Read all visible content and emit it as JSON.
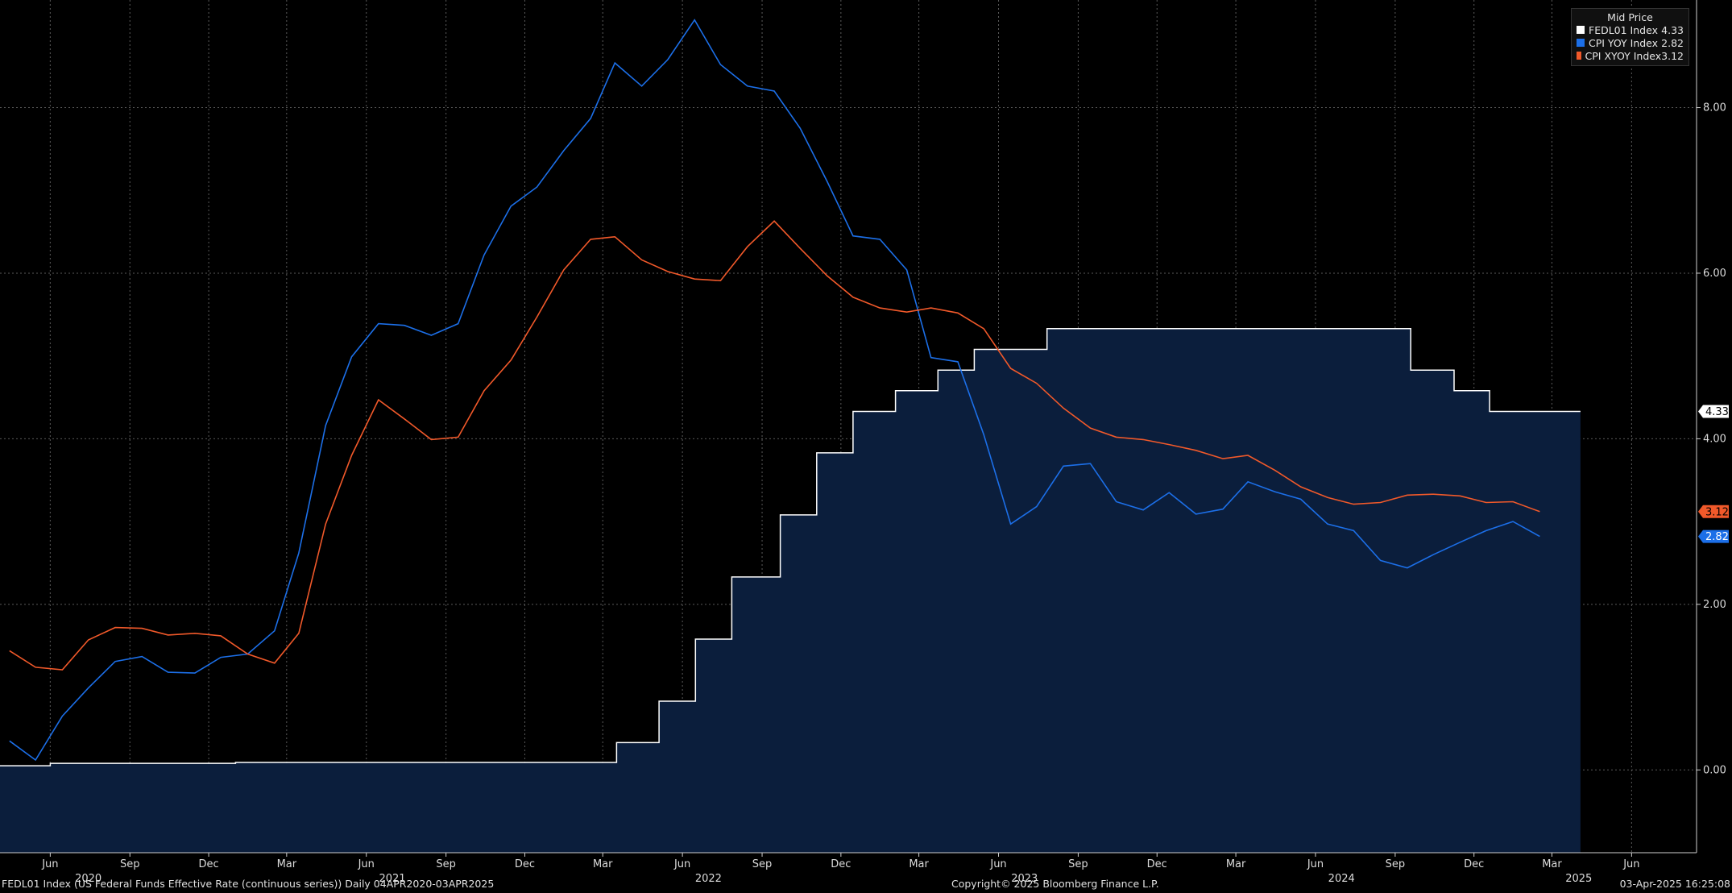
{
  "chart_data": {
    "type": "line",
    "legend": {
      "title": "Mid Price",
      "position": "top-right",
      "entries": [
        {
          "name": "FEDL01 Index",
          "value": "4.33",
          "color": "#ffffff"
        },
        {
          "name": "CPI YOY Index",
          "value": "2.82",
          "color": "#1c6fe8"
        },
        {
          "name": "CPI XYOY Index",
          "value": "3.12",
          "color": "#f1592a"
        }
      ]
    },
    "ylim": [
      -1.0,
      9.3
    ],
    "yticks": [
      "0.00",
      "2.00",
      "4.00",
      "6.00",
      "8.00"
    ],
    "xlim": [
      "2020-04-04",
      "2025-08-15"
    ],
    "month_ticks": [
      {
        "label": "Jun",
        "date": "2020-06-01"
      },
      {
        "label": "Sep",
        "date": "2020-09-01"
      },
      {
        "label": "Dec",
        "date": "2020-12-01"
      },
      {
        "label": "Mar",
        "date": "2021-03-01"
      },
      {
        "label": "Jun",
        "date": "2021-06-01"
      },
      {
        "label": "Sep",
        "date": "2021-09-01"
      },
      {
        "label": "Dec",
        "date": "2021-12-01"
      },
      {
        "label": "Mar",
        "date": "2022-03-01"
      },
      {
        "label": "Jun",
        "date": "2022-06-01"
      },
      {
        "label": "Sep",
        "date": "2022-09-01"
      },
      {
        "label": "Dec",
        "date": "2022-12-01"
      },
      {
        "label": "Mar",
        "date": "2023-03-01"
      },
      {
        "label": "Jun",
        "date": "2023-06-01"
      },
      {
        "label": "Sep",
        "date": "2023-09-01"
      },
      {
        "label": "Dec",
        "date": "2023-12-01"
      },
      {
        "label": "Mar",
        "date": "2024-03-01"
      },
      {
        "label": "Jun",
        "date": "2024-06-01"
      },
      {
        "label": "Sep",
        "date": "2024-09-01"
      },
      {
        "label": "Dec",
        "date": "2024-12-01"
      },
      {
        "label": "Mar",
        "date": "2025-03-01"
      },
      {
        "label": "Jun",
        "date": "2025-06-01"
      }
    ],
    "year_ticks": [
      {
        "label": "2020",
        "date": "2020-07-15"
      },
      {
        "label": "2021",
        "date": "2021-07-01"
      },
      {
        "label": "2022",
        "date": "2022-07-01"
      },
      {
        "label": "2023",
        "date": "2023-07-01"
      },
      {
        "label": "2024",
        "date": "2024-07-01"
      },
      {
        "label": "2025",
        "date": "2025-04-01"
      }
    ],
    "series": [
      {
        "name": "FEDL01 Index",
        "style": "step-area",
        "color": "#ffffff",
        "fill": "#0b1e3c",
        "x": [
          "2020-04-04",
          "2020-06-01",
          "2021-01-01",
          "2022-03-17",
          "2022-05-05",
          "2022-06-16",
          "2022-07-28",
          "2022-09-22",
          "2022-11-03",
          "2022-12-15",
          "2023-02-02",
          "2023-03-23",
          "2023-05-04",
          "2023-07-27",
          "2024-09-19",
          "2024-11-08",
          "2024-12-19",
          "2025-04-03"
        ],
        "values": [
          0.05,
          0.08,
          0.09,
          0.33,
          0.83,
          1.58,
          2.33,
          3.08,
          3.83,
          4.33,
          4.58,
          4.83,
          5.08,
          5.33,
          4.83,
          4.58,
          4.33,
          4.33
        ]
      },
      {
        "name": "CPI YOY Index",
        "style": "line",
        "color": "#1c6fe8",
        "x": [
          "2020-04-15",
          "2020-05-15",
          "2020-06-15",
          "2020-07-15",
          "2020-08-15",
          "2020-09-15",
          "2020-10-15",
          "2020-11-15",
          "2020-12-15",
          "2021-01-15",
          "2021-02-15",
          "2021-03-15",
          "2021-04-15",
          "2021-05-15",
          "2021-06-15",
          "2021-07-15",
          "2021-08-15",
          "2021-09-15",
          "2021-10-15",
          "2021-11-15",
          "2021-12-15",
          "2022-01-15",
          "2022-02-15",
          "2022-03-15",
          "2022-04-15",
          "2022-05-15",
          "2022-06-15",
          "2022-07-15",
          "2022-08-15",
          "2022-09-15",
          "2022-10-15",
          "2022-11-15",
          "2022-12-15",
          "2023-01-15",
          "2023-02-15",
          "2023-03-15",
          "2023-04-15",
          "2023-05-15",
          "2023-06-15",
          "2023-07-15",
          "2023-08-15",
          "2023-09-15",
          "2023-10-15",
          "2023-11-15",
          "2023-12-15",
          "2024-01-15",
          "2024-02-15",
          "2024-03-15",
          "2024-04-15",
          "2024-05-15",
          "2024-06-15",
          "2024-07-15",
          "2024-08-15",
          "2024-09-15",
          "2024-10-15",
          "2024-11-15",
          "2024-12-15",
          "2025-01-15",
          "2025-02-15"
        ],
        "values": [
          0.35,
          0.12,
          0.65,
          0.99,
          1.31,
          1.37,
          1.18,
          1.17,
          1.36,
          1.4,
          1.68,
          2.62,
          4.16,
          4.99,
          5.39,
          5.37,
          5.25,
          5.39,
          6.22,
          6.81,
          7.04,
          7.48,
          7.87,
          8.54,
          8.26,
          8.58,
          9.06,
          8.52,
          8.26,
          8.2,
          7.75,
          7.11,
          6.45,
          6.41,
          6.04,
          4.98,
          4.93,
          4.05,
          2.97,
          3.18,
          3.67,
          3.7,
          3.24,
          3.14,
          3.35,
          3.09,
          3.15,
          3.48,
          3.36,
          3.27,
          2.97,
          2.89,
          2.53,
          2.44,
          2.6,
          2.75,
          2.89,
          3.0,
          2.82
        ]
      },
      {
        "name": "CPI XYOY Index",
        "style": "line",
        "color": "#f1592a",
        "x": [
          "2020-04-15",
          "2020-05-15",
          "2020-06-15",
          "2020-07-15",
          "2020-08-15",
          "2020-09-15",
          "2020-10-15",
          "2020-11-15",
          "2020-12-15",
          "2021-01-15",
          "2021-02-15",
          "2021-03-15",
          "2021-04-15",
          "2021-05-15",
          "2021-06-15",
          "2021-07-15",
          "2021-08-15",
          "2021-09-15",
          "2021-10-15",
          "2021-11-15",
          "2021-12-15",
          "2022-01-15",
          "2022-02-15",
          "2022-03-15",
          "2022-04-15",
          "2022-05-15",
          "2022-06-15",
          "2022-07-15",
          "2022-08-15",
          "2022-09-15",
          "2022-10-15",
          "2022-11-15",
          "2022-12-15",
          "2023-01-15",
          "2023-02-15",
          "2023-03-15",
          "2023-04-15",
          "2023-05-15",
          "2023-06-15",
          "2023-07-15",
          "2023-08-15",
          "2023-09-15",
          "2023-10-15",
          "2023-11-15",
          "2023-12-15",
          "2024-01-15",
          "2024-02-15",
          "2024-03-15",
          "2024-04-15",
          "2024-05-15",
          "2024-06-15",
          "2024-07-15",
          "2024-08-15",
          "2024-09-15",
          "2024-10-15",
          "2024-11-15",
          "2024-12-15",
          "2025-01-15",
          "2025-02-15"
        ],
        "values": [
          1.44,
          1.24,
          1.21,
          1.57,
          1.72,
          1.71,
          1.63,
          1.65,
          1.62,
          1.4,
          1.29,
          1.65,
          2.97,
          3.8,
          4.47,
          4.24,
          3.99,
          4.02,
          4.58,
          4.95,
          5.47,
          6.04,
          6.41,
          6.44,
          6.16,
          6.02,
          5.93,
          5.91,
          6.32,
          6.63,
          6.3,
          5.97,
          5.71,
          5.58,
          5.53,
          5.58,
          5.52,
          5.33,
          4.85,
          4.67,
          4.37,
          4.13,
          4.02,
          3.99,
          3.93,
          3.86,
          3.76,
          3.8,
          3.62,
          3.42,
          3.29,
          3.21,
          3.23,
          3.32,
          3.33,
          3.31,
          3.23,
          3.24,
          3.12
        ]
      }
    ],
    "last_value_tags": [
      {
        "label": "4.33",
        "value": 4.33,
        "bg": "#ffffff",
        "fg": "#000000"
      },
      {
        "label": "3.12",
        "value": 3.12,
        "bg": "#f1592a",
        "fg": "#000000"
      },
      {
        "label": "2.82",
        "value": 2.82,
        "bg": "#1c6fe8",
        "fg": "#ffffff"
      }
    ],
    "grid": true
  },
  "footer": {
    "left": "FEDL01 Index (US Federal Funds Effective Rate (continuous series))  Daily 04APR2020-03APR2025",
    "center": "Copyright© 2025 Bloomberg Finance L.P.",
    "right": "03-Apr-2025 16:25:08"
  }
}
